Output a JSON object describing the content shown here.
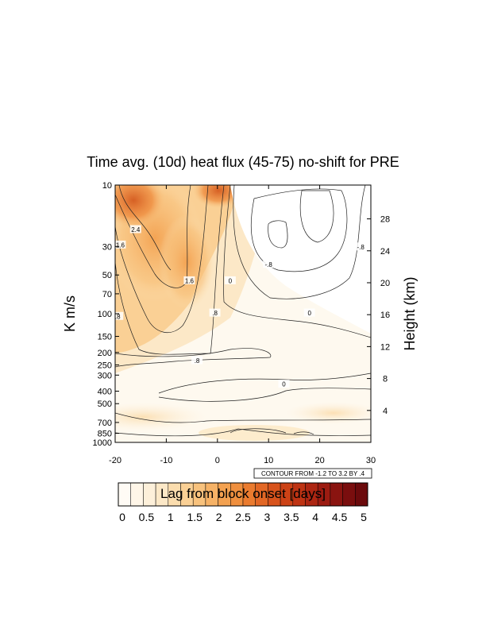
{
  "chart_data": {
    "type": "heatmap",
    "title": "Time avg. (10d) heat flux (45-75) no-shift for PRE",
    "xlabel": "",
    "ylabel": "K m/s",
    "ylabel_right": "Height (km)",
    "xlim": [
      -20,
      30
    ],
    "x_ticks": [
      "-20",
      "-10",
      "0",
      "10",
      "20",
      "30"
    ],
    "y_scale": "log",
    "ylim": [
      1000,
      10
    ],
    "y_ticks": [
      "10",
      "30",
      "50",
      "70",
      "100",
      "150",
      "200",
      "250",
      "300",
      "400",
      "500",
      "700",
      "850",
      "1000"
    ],
    "right_ticks": [
      "4",
      "8",
      "12",
      "16",
      "20",
      "24",
      "28"
    ],
    "contour_note": "CONTOUR FROM -1.2 TO 3.2 BY .4",
    "contour_labels": [
      {
        "text": "2.4",
        "x": -16,
        "p": 22
      },
      {
        "text": "1.6",
        "x": -19,
        "p": 29
      },
      {
        "text": "1.6",
        "x": -5.5,
        "p": 55
      },
      {
        "text": ".8",
        "x": -19.5,
        "p": 104
      },
      {
        "text": ".8",
        "x": -0.5,
        "p": 98
      },
      {
        "text": ".8",
        "x": -4,
        "p": 230
      },
      {
        "text": "0",
        "x": 2.5,
        "p": 55
      },
      {
        "text": "0",
        "x": 18,
        "p": 98
      },
      {
        "text": "0",
        "x": 13,
        "p": 350
      },
      {
        "text": "-.8",
        "x": 10,
        "p": 41
      },
      {
        "text": "-.8",
        "x": 28,
        "p": 30
      }
    ],
    "colorbar": {
      "label": "Lag from block onset [days]",
      "tick_labels": [
        "0",
        "0.5",
        "1",
        "1.5",
        "2",
        "2.5",
        "3",
        "3.5",
        "4",
        "4.5",
        "5"
      ],
      "colors": [
        "#fffbf5",
        "#fff6e8",
        "#fdf0da",
        "#fce8c7",
        "#fbddae",
        "#fad095",
        "#f8c27d",
        "#f6b266",
        "#f3a150",
        "#ef8f3e",
        "#ea7b2f",
        "#e26725",
        "#d8531c",
        "#cc4216",
        "#be3313",
        "#ad2612",
        "#9c1b11",
        "#8a1410",
        "#7a0e0e",
        "#6b0a0c"
      ]
    }
  }
}
